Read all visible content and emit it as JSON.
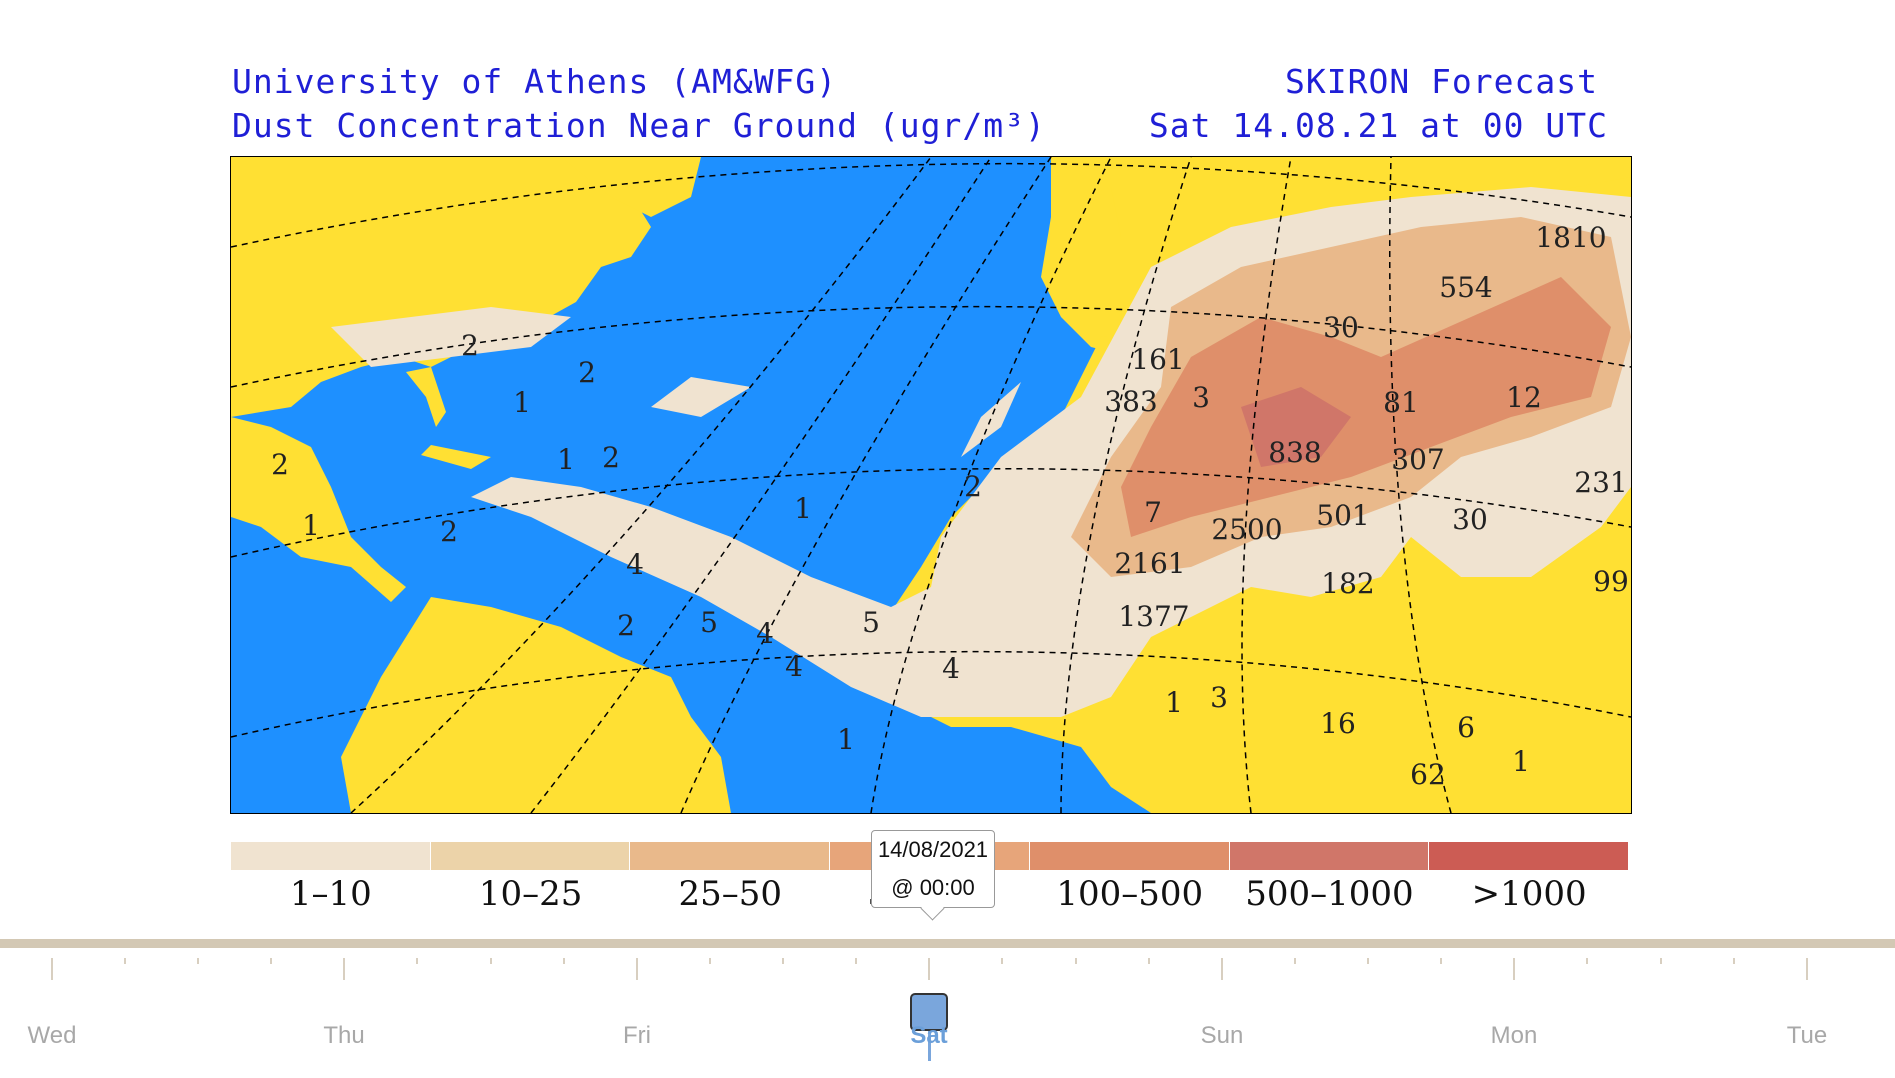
{
  "header": {
    "line1_left": "University of Athens (AM&WFG)",
    "line2_left": "Dust Concentration Near Ground (ugr/m³)",
    "line1_right": "SKIRON Forecast",
    "line2_right": "Sat 14.08.21 at 00 UTC"
  },
  "map_labels": [
    "1810",
    "554",
    "161",
    "383",
    "3",
    "30",
    "81",
    "12",
    "838",
    "307",
    "231",
    "7",
    "2500",
    "501",
    "30",
    "2161",
    "1377",
    "182",
    "99",
    "1",
    "3",
    "16",
    "6",
    "62",
    "1",
    "1",
    "2",
    "2",
    "1",
    "2",
    "2",
    "4",
    "1",
    "2",
    "5",
    "4",
    "2",
    "5",
    "4",
    "4",
    "2",
    "1",
    "1"
  ],
  "legend": {
    "colors": [
      "#f0e3d0",
      "#ecd3a9",
      "#e9b98b",
      "#e7a57a",
      "#df8f6a",
      "#d07669",
      "#cc5c54"
    ],
    "labels": [
      "1–10",
      "10–25",
      "25–50",
      "50–100",
      "100–500",
      "500–1000",
      ">1000"
    ]
  },
  "tooltip": {
    "date": "14/08/2021",
    "time": "@ 00:00"
  },
  "timeline": {
    "days": [
      "Wed",
      "Thu",
      "Fri",
      "Sat",
      "Sun",
      "Mon",
      "Tue"
    ],
    "selected": "Sat",
    "track_color": "#d3c8b4",
    "handle_color": "#7aa6dc"
  },
  "colors": {
    "ocean": "#1e90ff",
    "land": "#ffe033",
    "header_text": "#1f1fd6"
  }
}
